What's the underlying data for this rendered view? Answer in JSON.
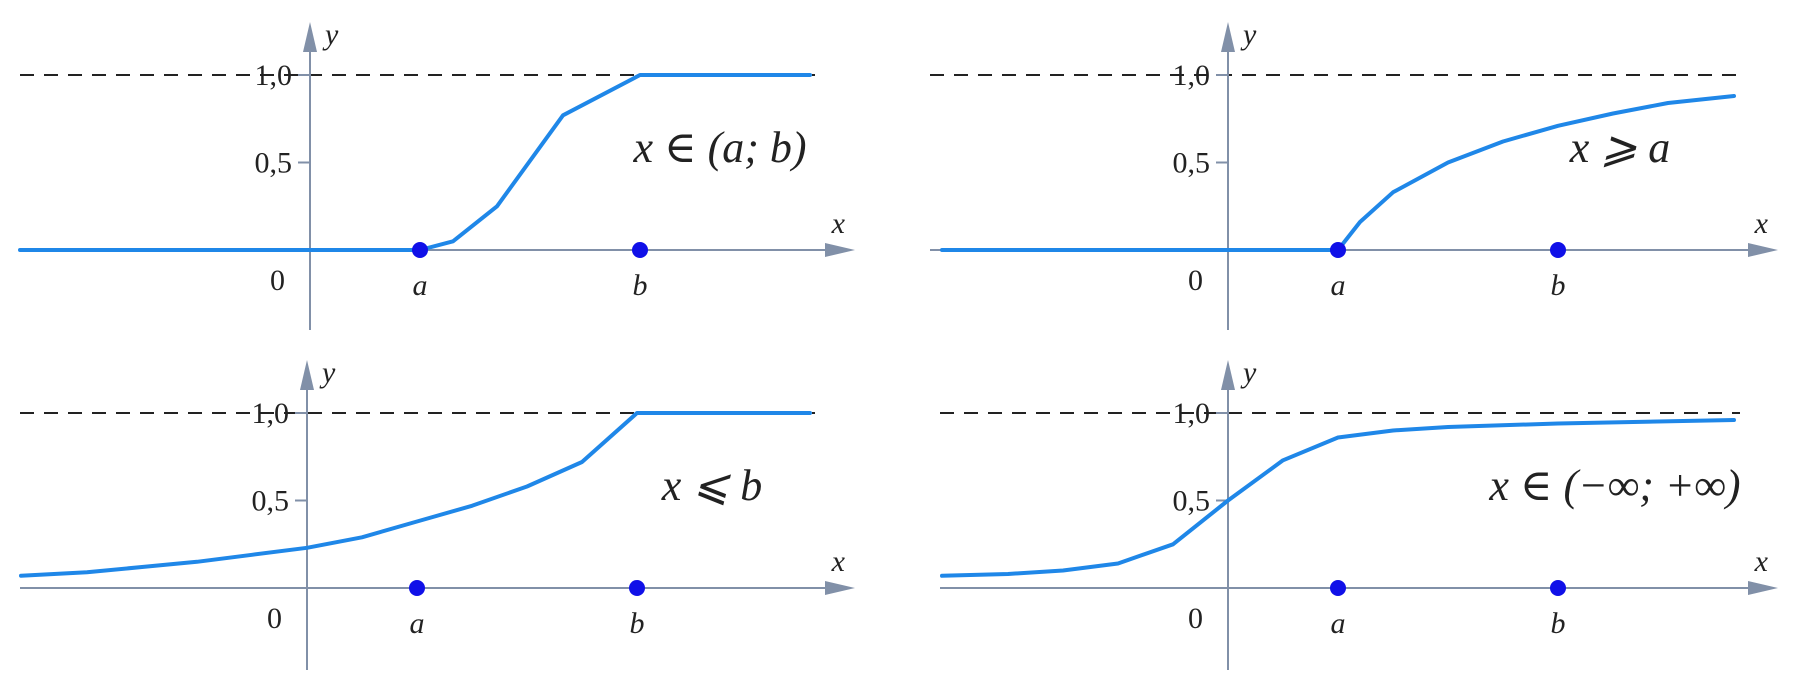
{
  "chart_data": [
    {
      "type": "line",
      "title": "",
      "condition": "x ∈ (a; b)",
      "xlabel": "x",
      "ylabel": "y",
      "ytick_labels": [
        "0,5",
        "1,0"
      ],
      "origin_label": "0",
      "point_labels": [
        "a",
        "b"
      ],
      "asymptote": 1.0,
      "series": [
        {
          "x": [
            -2.8,
            0,
            1,
            1.3,
            1.7,
            2.3,
            3.0,
            4.6
          ],
          "y": [
            0,
            0,
            0,
            0.05,
            0.25,
            0.77,
            1.0,
            1.0
          ]
        }
      ]
    },
    {
      "type": "line",
      "title": "",
      "condition": "x ⩾ a",
      "xlabel": "x",
      "ylabel": "y",
      "ytick_labels": [
        "0,5",
        "1,0"
      ],
      "origin_label": "0",
      "point_labels": [
        "a",
        "b"
      ],
      "asymptote": 1.0,
      "series": [
        {
          "x": [
            -2.6,
            0,
            1,
            1.2,
            1.5,
            2,
            2.5,
            3,
            3.5,
            4,
            4.6
          ],
          "y": [
            0,
            0,
            0,
            0.16,
            0.33,
            0.5,
            0.62,
            0.71,
            0.78,
            0.84,
            0.88
          ]
        }
      ]
    },
    {
      "type": "line",
      "title": "",
      "condition": "x ⩽  b",
      "xlabel": "x",
      "ylabel": "y",
      "ytick_labels": [
        "0,5",
        "1,0"
      ],
      "origin_label": "0",
      "point_labels": [
        "a",
        "b"
      ],
      "asymptote": 1.0,
      "series": [
        {
          "x": [
            -2.6,
            -2,
            -1.5,
            -1,
            -0.5,
            0,
            0.5,
            1,
            1.5,
            2,
            2.5,
            3,
            4.6
          ],
          "y": [
            0.07,
            0.09,
            0.12,
            0.15,
            0.19,
            0.23,
            0.29,
            0.38,
            0.47,
            0.58,
            0.72,
            1.0,
            1.0
          ]
        }
      ]
    },
    {
      "type": "line",
      "title": "",
      "condition": "x ∈ (−∞; +∞)",
      "xlabel": "x",
      "ylabel": "y",
      "ytick_labels": [
        "0,5",
        "1,0"
      ],
      "origin_label": "0",
      "point_labels": [
        "a",
        "b"
      ],
      "asymptote": 1.0,
      "series": [
        {
          "x": [
            -2.6,
            -2,
            -1.5,
            -1,
            -0.5,
            0,
            0.5,
            1,
            1.5,
            2,
            3,
            4.6
          ],
          "y": [
            0.07,
            0.08,
            0.1,
            0.14,
            0.25,
            0.5,
            0.73,
            0.86,
            0.9,
            0.92,
            0.94,
            0.96
          ]
        }
      ]
    }
  ]
}
